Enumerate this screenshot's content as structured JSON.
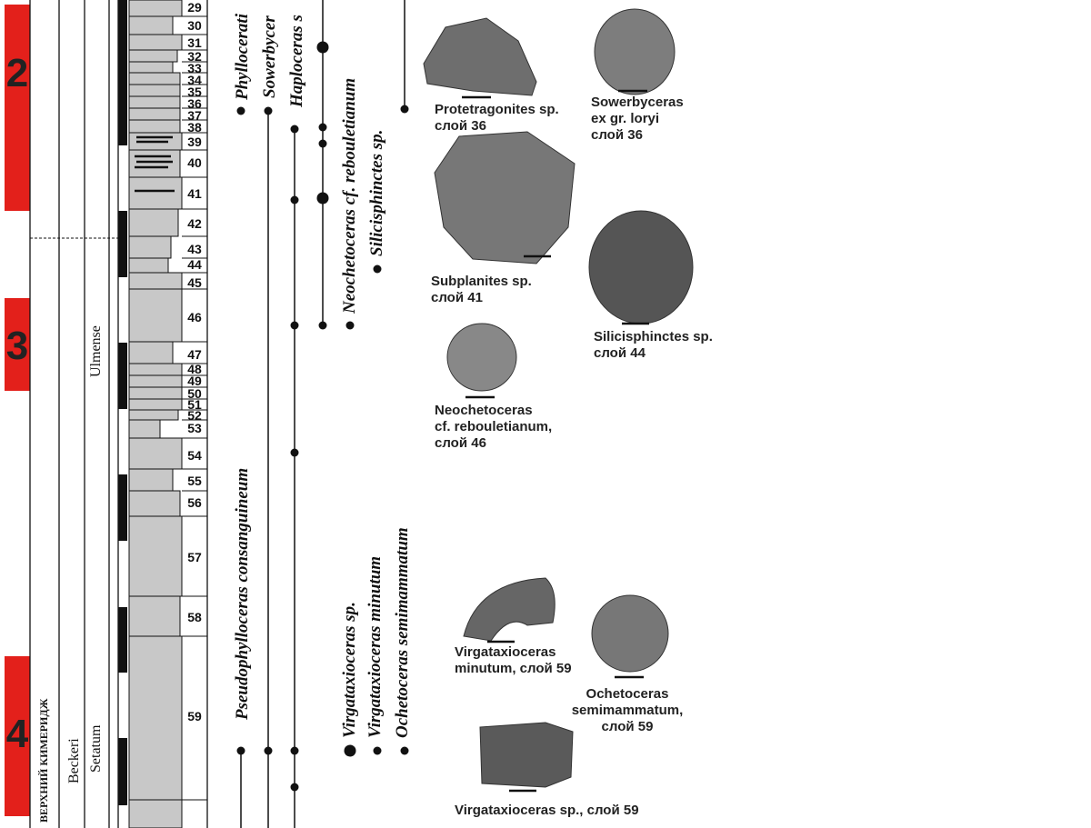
{
  "zones": [
    "2",
    "3",
    "4"
  ],
  "stage": "ВЕРХНИЙ КИМЕРИДЖ",
  "zonal_units": [
    "Beckeri",
    "Setatum",
    "Ulmense"
  ],
  "beds": [
    "29",
    "30",
    "31",
    "32",
    "33",
    "34",
    "35",
    "36",
    "37",
    "38",
    "39",
    "40",
    "41",
    "42",
    "43",
    "44",
    "45",
    "46",
    "47",
    "48",
    "49",
    "50",
    "51",
    "52",
    "53",
    "54",
    "55",
    "56",
    "57",
    "58",
    "59"
  ],
  "taxa": [
    "Phyllocerati",
    "Sowerbycer",
    "Haploceras s",
    "Neochetoceras cf. rebouletianum",
    "Silicisphinctes sp.",
    "Pseudophylloceras consanguineum",
    "Virgataxioceras sp.",
    "Virgataxioceras minutum",
    "Ochetoceras semimammatum"
  ],
  "captions": [
    [
      "Protetragonites sp.",
      "слой 36"
    ],
    [
      "Sowerbyceras",
      "ex gr. loryi",
      "слой 36"
    ],
    [
      "Subplanites sp.",
      "слой 41"
    ],
    [
      "Silicisphinctes sp.",
      "слой 44"
    ],
    [
      "Neochetoceras",
      "cf. rebouletianum,",
      "слой  46"
    ],
    [
      "Virgataxioceras",
      "minutum, слой 59"
    ],
    [
      "Ochetoceras",
      "semimammatum,",
      "слой  59"
    ],
    [
      "Virgataxioceras sp., слой 59"
    ]
  ]
}
